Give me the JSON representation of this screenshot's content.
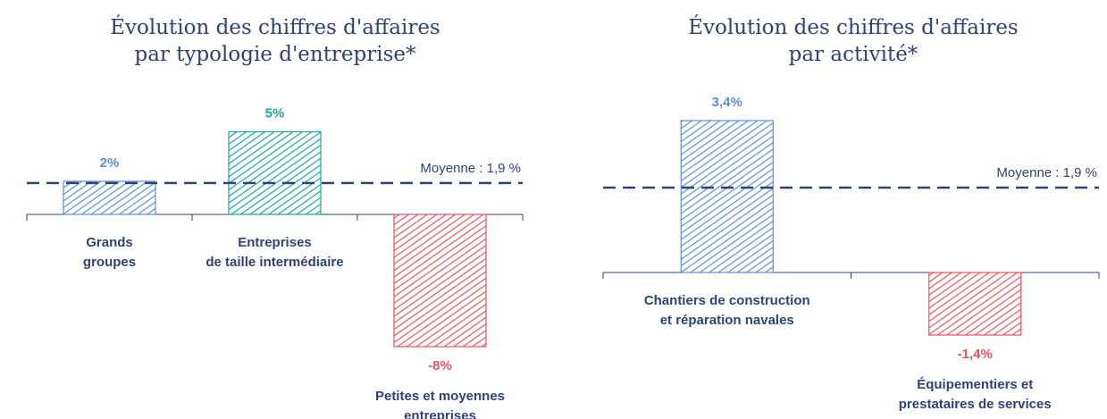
{
  "chart_data": [
    {
      "type": "bar",
      "title": "Évolution des chiffres d'affaires\npar typologie d'entreprise*",
      "categories": [
        "Grands\ngroupes",
        "Entreprises\nde taille intermédiaire",
        "Petites et moyennes\nentreprises"
      ],
      "values": [
        2,
        5,
        -8
      ],
      "value_labels": [
        "2%",
        "5%",
        "-8%"
      ],
      "colors": [
        "#5b8fd0",
        "#1aa59a",
        "#e8525e"
      ],
      "ylim": [
        -10,
        8
      ],
      "average_line": {
        "value": 1.9,
        "label": "Moyenne : 1,9 %"
      }
    },
    {
      "type": "bar",
      "title": "Évolution des chiffres d'affaires\npar activité*",
      "categories": [
        "Chantiers de construction\net réparation navales",
        "Équipementiers et\nprestataires de services"
      ],
      "values": [
        3.4,
        -1.4
      ],
      "value_labels": [
        "3,4%",
        "-1,4%"
      ],
      "colors": [
        "#5b8fd0",
        "#e8525e"
      ],
      "ylim": [
        -2,
        4
      ],
      "average_line": {
        "value": 1.9,
        "label": "Moyenne : 1,9 %"
      }
    }
  ]
}
